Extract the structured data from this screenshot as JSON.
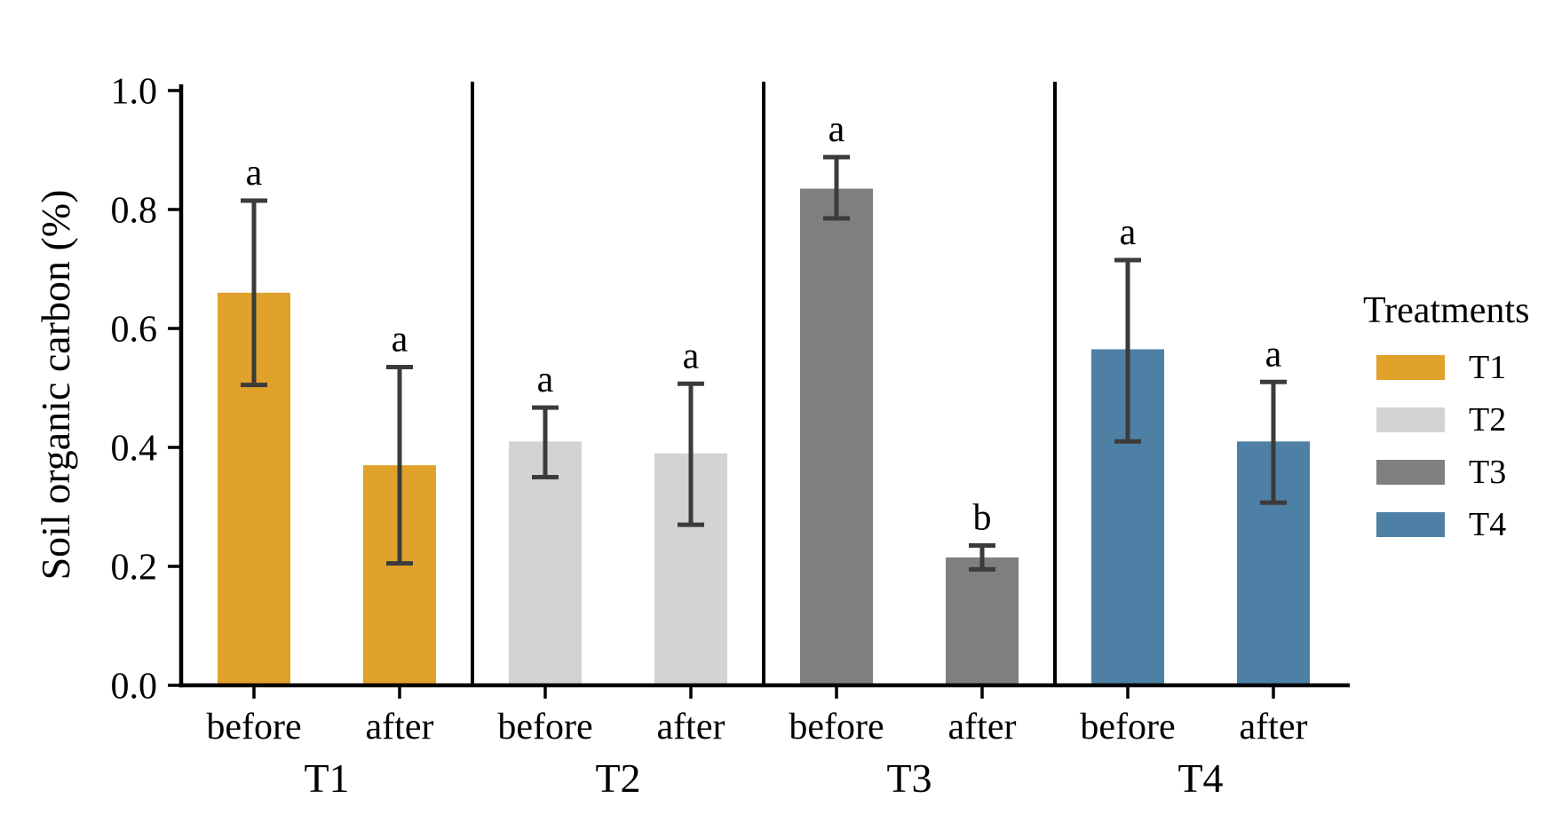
{
  "chart_data": {
    "type": "bar",
    "title": "",
    "xlabel": "",
    "ylabel": "Soil organic carbon (%)",
    "ylim": [
      0.0,
      1.0
    ],
    "yticks": [
      "0.0",
      "0.2",
      "0.4",
      "0.6",
      "0.8",
      "1.0"
    ],
    "ytick_values": [
      0.0,
      0.2,
      0.4,
      0.6,
      0.8,
      1.0
    ],
    "grid": false,
    "legend_position": "right",
    "categories": [
      "T1",
      "T2",
      "T3",
      "T4"
    ],
    "bar_labels": [
      "before",
      "after"
    ],
    "groups": [
      {
        "treatment": "T1",
        "color": "#E0A22B",
        "bars": [
          {
            "label": "before",
            "value": 0.66,
            "err_low": 0.505,
            "err_high": 0.815,
            "sig_letter": "a"
          },
          {
            "label": "after",
            "value": 0.37,
            "err_low": 0.205,
            "err_high": 0.535,
            "sig_letter": "a"
          }
        ]
      },
      {
        "treatment": "T2",
        "color": "#D3D3D3",
        "bars": [
          {
            "label": "before",
            "value": 0.41,
            "err_low": 0.35,
            "err_high": 0.467,
            "sig_letter": "a"
          },
          {
            "label": "after",
            "value": 0.39,
            "err_low": 0.27,
            "err_high": 0.507,
            "sig_letter": "a"
          }
        ]
      },
      {
        "treatment": "T3",
        "color": "#7F7F7F",
        "bars": [
          {
            "label": "before",
            "value": 0.835,
            "err_low": 0.785,
            "err_high": 0.888,
            "sig_letter": "a"
          },
          {
            "label": "after",
            "value": 0.215,
            "err_low": 0.195,
            "err_high": 0.235,
            "sig_letter": "b"
          }
        ]
      },
      {
        "treatment": "T4",
        "color": "#4E80A5",
        "bars": [
          {
            "label": "before",
            "value": 0.565,
            "err_low": 0.41,
            "err_high": 0.715,
            "sig_letter": "a"
          },
          {
            "label": "after",
            "value": 0.41,
            "err_low": 0.307,
            "err_high": 0.51,
            "sig_letter": "a"
          }
        ]
      }
    ],
    "legend": {
      "title": "Treatments",
      "entries": [
        {
          "label": "T1",
          "color": "#E0A22B"
        },
        {
          "label": "T2",
          "color": "#D3D3D3"
        },
        {
          "label": "T3",
          "color": "#7F7F7F"
        },
        {
          "label": "T4",
          "color": "#4E80A5"
        }
      ]
    },
    "errorbar_color": "#3B3B3B",
    "axis_color": "#000000",
    "sig_letter_color": "#1a1a1a"
  }
}
